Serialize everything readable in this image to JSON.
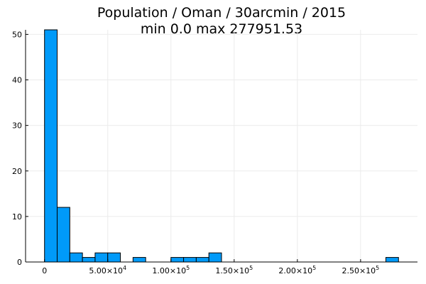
{
  "chart_data": {
    "type": "bar",
    "title": "Population / Oman / 30arcmin / 2015",
    "subtitle": "min 0.0  max 277951.53",
    "xlabel": "",
    "ylabel": "",
    "bin_width": 10000,
    "bins": [
      {
        "x0": 0,
        "x1": 10000,
        "count": 51
      },
      {
        "x0": 10000,
        "x1": 20000,
        "count": 12
      },
      {
        "x0": 20000,
        "x1": 30000,
        "count": 2
      },
      {
        "x0": 30000,
        "x1": 40000,
        "count": 1
      },
      {
        "x0": 40000,
        "x1": 50000,
        "count": 2
      },
      {
        "x0": 50000,
        "x1": 60000,
        "count": 2
      },
      {
        "x0": 70000,
        "x1": 80000,
        "count": 1
      },
      {
        "x0": 100000,
        "x1": 110000,
        "count": 1
      },
      {
        "x0": 110000,
        "x1": 120000,
        "count": 1
      },
      {
        "x0": 120000,
        "x1": 130000,
        "count": 1
      },
      {
        "x0": 130000,
        "x1": 140000,
        "count": 2
      },
      {
        "x0": 270000,
        "x1": 280000,
        "count": 1
      }
    ],
    "xlim": [
      -15000,
      295000
    ],
    "ylim": [
      0,
      51
    ],
    "x_ticks": [
      {
        "value": 0,
        "label": "0",
        "exp": ""
      },
      {
        "value": 50000,
        "label": "5.00×10",
        "exp": "4"
      },
      {
        "value": 100000,
        "label": "1.00×10",
        "exp": "5"
      },
      {
        "value": 150000,
        "label": "1.50×10",
        "exp": "5"
      },
      {
        "value": 200000,
        "label": "2.00×10",
        "exp": "5"
      },
      {
        "value": 250000,
        "label": "2.50×10",
        "exp": "5"
      }
    ],
    "y_ticks": [
      {
        "value": 0,
        "label": "0"
      },
      {
        "value": 10,
        "label": "10"
      },
      {
        "value": 20,
        "label": "20"
      },
      {
        "value": 30,
        "label": "30"
      },
      {
        "value": 40,
        "label": "40"
      },
      {
        "value": 50,
        "label": "50"
      }
    ],
    "grid": true,
    "legend": "none",
    "colors": {
      "bar_fill": "#009AF9",
      "bar_stroke": "#000000",
      "grid": "#EBEBEB",
      "axis": "#000000"
    }
  }
}
